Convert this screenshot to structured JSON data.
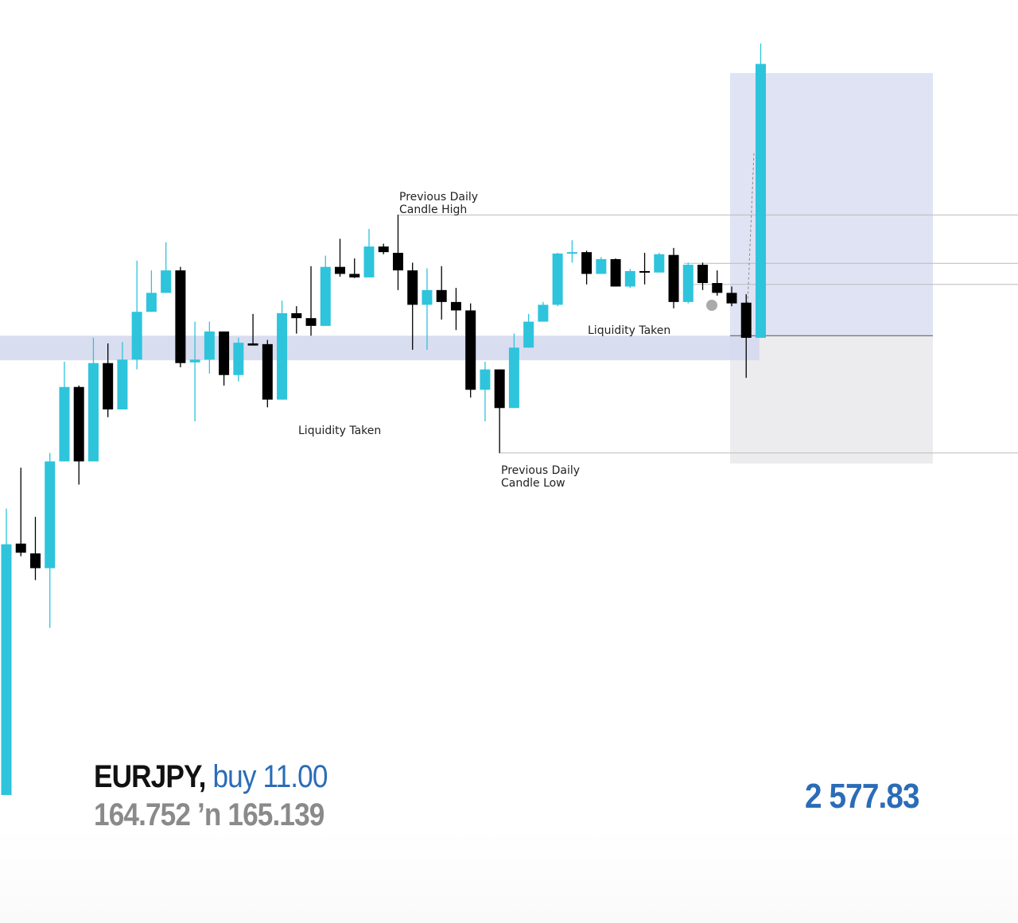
{
  "chart_data": {
    "type": "candlestick",
    "open": [
      164.098,
      164.456,
      164.442,
      164.421,
      164.573,
      164.679,
      164.573,
      164.713,
      164.647,
      164.718,
      164.786,
      164.813,
      164.845,
      164.714,
      164.718,
      164.758,
      164.696,
      164.741,
      164.74,
      164.661,
      164.784,
      164.777,
      164.766,
      164.85,
      164.84,
      164.835,
      164.879,
      164.87,
      164.845,
      164.796,
      164.817,
      164.8,
      164.788,
      164.675,
      164.704,
      164.649,
      164.735,
      164.772,
      164.796,
      164.869,
      164.871,
      164.84,
      164.861,
      164.822,
      164.844,
      164.842,
      164.867,
      164.8,
      164.853,
      164.827,
      164.813,
      164.799,
      164.749
    ],
    "high": [
      164.506,
      164.564,
      164.494,
      164.585,
      164.715,
      164.681,
      164.749,
      164.741,
      164.743,
      164.859,
      164.845,
      164.885,
      164.85,
      164.772,
      164.772,
      164.758,
      164.749,
      164.783,
      164.746,
      164.802,
      164.794,
      164.851,
      164.866,
      164.89,
      164.862,
      164.904,
      164.883,
      164.924,
      164.856,
      164.848,
      164.851,
      164.82,
      164.798,
      164.715,
      164.704,
      164.755,
      164.783,
      164.8,
      164.87,
      164.888,
      164.873,
      164.864,
      164.862,
      164.847,
      164.87,
      164.87,
      164.877,
      164.856,
      164.856,
      164.845,
      164.822,
      164.811,
      165.168
    ],
    "low": [
      164.098,
      164.438,
      164.404,
      164.336,
      164.573,
      164.54,
      164.573,
      164.636,
      164.647,
      164.704,
      164.786,
      164.813,
      164.707,
      164.63,
      164.698,
      164.681,
      164.687,
      164.738,
      164.65,
      164.661,
      164.755,
      164.752,
      164.766,
      164.836,
      164.834,
      164.835,
      164.868,
      164.817,
      164.732,
      164.732,
      164.775,
      164.76,
      164.664,
      164.63,
      164.585,
      164.649,
      164.735,
      164.772,
      164.794,
      164.856,
      164.825,
      164.84,
      164.822,
      164.82,
      164.825,
      164.842,
      164.791,
      164.798,
      164.817,
      164.809,
      164.794,
      164.692,
      164.749
    ],
    "close": [
      164.455,
      164.443,
      164.421,
      164.573,
      164.679,
      164.573,
      164.713,
      164.647,
      164.718,
      164.786,
      164.813,
      164.845,
      164.713,
      164.718,
      164.758,
      164.696,
      164.742,
      164.738,
      164.661,
      164.784,
      164.777,
      164.766,
      164.85,
      164.84,
      164.835,
      164.879,
      164.871,
      164.845,
      164.796,
      164.817,
      164.8,
      164.788,
      164.675,
      164.704,
      164.649,
      164.735,
      164.772,
      164.796,
      164.869,
      164.871,
      164.84,
      164.861,
      164.822,
      164.844,
      164.842,
      164.868,
      164.8,
      164.853,
      164.827,
      164.813,
      164.798,
      164.749,
      165.139
    ],
    "up_color": "#2ec4dc",
    "down_color": "#000000",
    "ylim": [
      164.098,
      165.23
    ],
    "zone": {
      "from": 164.717,
      "to": 164.752,
      "color": "#d5d9ee"
    },
    "levels": [
      164.924,
      164.855,
      164.825,
      164.585
    ],
    "position": {
      "entry": 164.752,
      "target": 165.126,
      "stop": 164.57,
      "target_color": "#dfe3f3",
      "stop_color": "#ececef"
    },
    "annotations": [
      {
        "lines": [
          "Previous Daily",
          "Candle High"
        ]
      },
      {
        "lines": [
          "Liquidity Taken"
        ]
      },
      {
        "lines": [
          "Liquidity Taken"
        ]
      },
      {
        "lines": [
          "Previous Daily",
          "Candle Low"
        ]
      }
    ]
  },
  "trade": {
    "symbol": "EURJPY,",
    "order": "buy 11.00",
    "prices": "164.752 ʼn 165.139",
    "profit": "2 577.83"
  }
}
